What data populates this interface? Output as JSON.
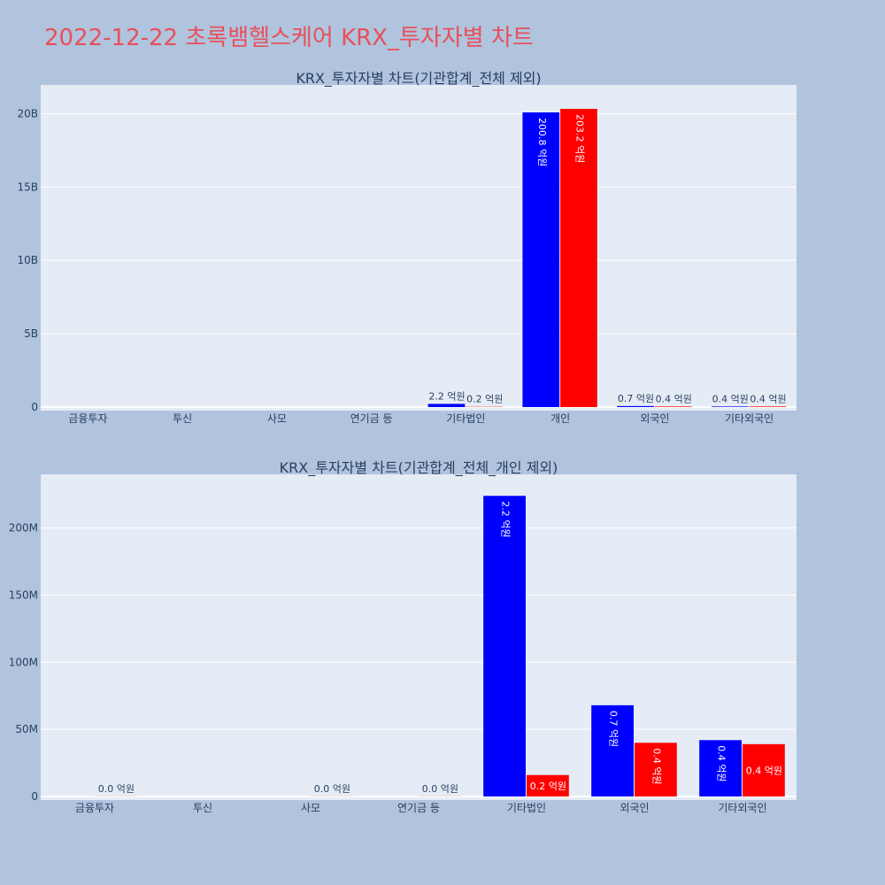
{
  "page_title": "2022-12-22 초록뱀헬스케어 KRX_투자자별 차트",
  "colors": {
    "buy": "#0000ff",
    "sell": "#ff0000",
    "plot_bg": "#e5ecf6",
    "paper_bg": "#b0c4de",
    "title": "#e8505b"
  },
  "chart_data": [
    {
      "type": "bar",
      "title": "KRX_투자자별 차트(기관합계_전체 제외)",
      "categories": [
        "금융투자",
        "투신",
        "사모",
        "연기금 등",
        "기타법인",
        "개인",
        "외국인",
        "기타외국인"
      ],
      "ylim": [
        0,
        21950000000.0
      ],
      "yticks": [
        0,
        5000000000.0,
        10000000000.0,
        15000000000.0,
        20000000000.0
      ],
      "ytick_labels": [
        "0",
        "5B",
        "10B",
        "15B",
        "20B"
      ],
      "grid": true,
      "series": [
        {
          "color": "#0000ff",
          "values": [
            0,
            0,
            0,
            0,
            220000000.0,
            20080000000.0,
            70000000.0,
            40000000.0
          ],
          "labels": [
            "",
            "",
            "",
            "",
            "2.2 억원",
            "200.8 억원",
            "0.7 억원",
            "0.4 억원"
          ]
        },
        {
          "color": "#ff0000",
          "values": [
            0,
            0,
            0,
            0,
            20000000.0,
            20320000000.0,
            40000000.0,
            40000000.0
          ],
          "labels": [
            "",
            "",
            "",
            "",
            "0.2 억원",
            "203.2 억원",
            "0.4 억원",
            "0.4 억원"
          ]
        }
      ]
    },
    {
      "type": "bar",
      "title": "KRX_투자자별 차트(기관합계_전체_개인 제외)",
      "categories": [
        "금융투자",
        "투신",
        "사모",
        "연기금 등",
        "기타법인",
        "외국인",
        "기타외국인"
      ],
      "ylim": [
        0,
        240000000.0
      ],
      "yticks": [
        0,
        50000000.0,
        100000000.0,
        150000000.0,
        200000000.0
      ],
      "ytick_labels": [
        "0",
        "50M",
        "100M",
        "150M",
        "200M"
      ],
      "grid": true,
      "series": [
        {
          "color": "#0000ff",
          "values": [
            0,
            0,
            0,
            0,
            224000000.0,
            68000000.0,
            42000000.0
          ],
          "labels": [
            "",
            "",
            "",
            "",
            "2.2 억원",
            "0.7 억원",
            "0.4 억원"
          ]
        },
        {
          "color": "#ff0000",
          "values": [
            100000.0,
            0,
            100000.0,
            100000.0,
            16000000.0,
            40000000.0,
            39000000.0
          ],
          "labels": [
            "0.0 억원",
            "",
            "0.0 억원",
            "0.0 억원",
            "0.2 억원",
            "0.4 억원",
            "0.4 억원"
          ]
        }
      ]
    }
  ]
}
